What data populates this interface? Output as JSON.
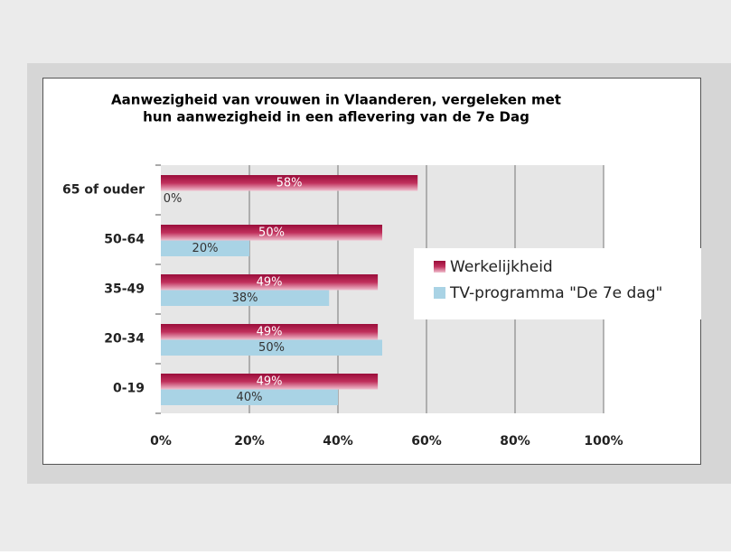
{
  "chart_data": {
    "type": "hbar",
    "title": [
      "Aanwezigheid van vrouwen in Vlaanderen, vergeleken met",
      "hun aanwezigheid in een aflevering van de 7e Dag"
    ],
    "categories": [
      "65 of ouder",
      "50-64",
      "35-49",
      "20-34",
      "0-19"
    ],
    "series": [
      {
        "name": "Werkelijkheid",
        "color": "#a8113f",
        "values": [
          58,
          50,
          49,
          49,
          49
        ],
        "value_labels": [
          "58%",
          "50%",
          "49%",
          "49%",
          "49%"
        ]
      },
      {
        "name": "TV-programma \"De 7e dag\"",
        "color": "#a9d3e5",
        "values": [
          0,
          20,
          38,
          50,
          40
        ],
        "value_labels": [
          "0%",
          "20%",
          "38%",
          "50%",
          "40%"
        ]
      }
    ],
    "xlim": [
      0,
      100
    ],
    "xticks": [
      {
        "value": 0,
        "label": "0%"
      },
      {
        "value": 20,
        "label": "20%"
      },
      {
        "value": 40,
        "label": "40%"
      },
      {
        "value": 60,
        "label": "60%"
      },
      {
        "value": 80,
        "label": "80%"
      },
      {
        "value": 100,
        "label": "100%"
      }
    ],
    "grid": true
  }
}
